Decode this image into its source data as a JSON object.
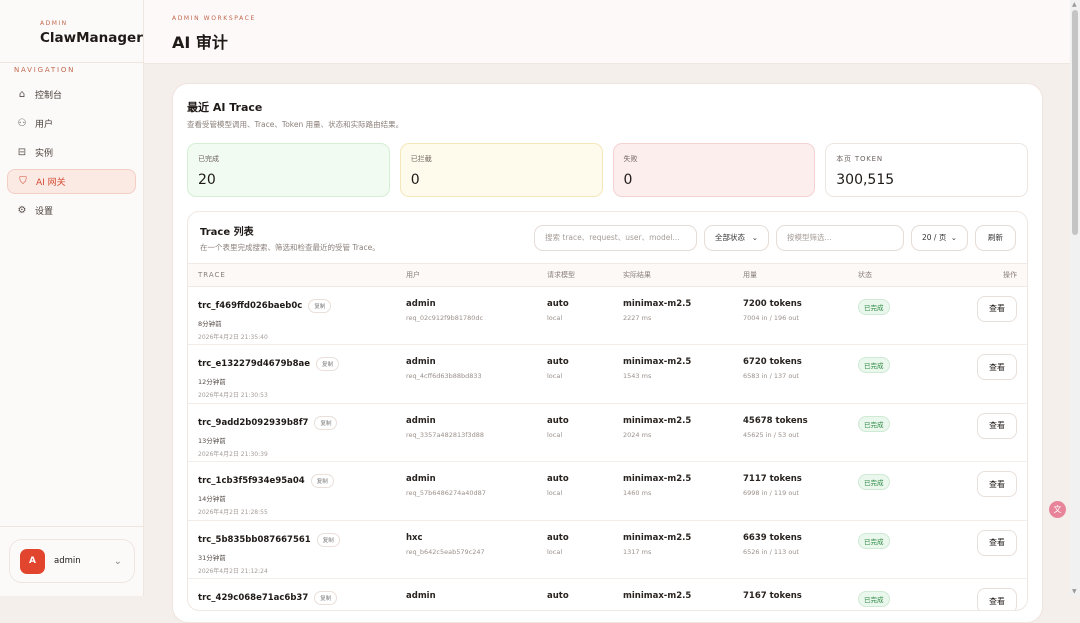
{
  "brand": {
    "small": "ADMIN",
    "name": "ClawManager"
  },
  "nav": {
    "label": "NAVIGATION",
    "items": [
      {
        "label": "控制台",
        "icon": "home-icon"
      },
      {
        "label": "用户",
        "icon": "users-icon"
      },
      {
        "label": "实例",
        "icon": "instance-icon"
      },
      {
        "label": "AI 网关",
        "icon": "shield-icon",
        "active": true
      },
      {
        "label": "设置",
        "icon": "gear-icon"
      }
    ]
  },
  "user": {
    "initial": "A",
    "name": "admin"
  },
  "header": {
    "small": "ADMIN WORKSPACE",
    "title": "AI 审计"
  },
  "card": {
    "title": "最近 AI Trace",
    "subtitle": "查看受管模型调用、Trace、Token 用量、状态和实际路由结果。"
  },
  "stats": [
    {
      "label": "已完成",
      "value": "20"
    },
    {
      "label": "已拦截",
      "value": "0"
    },
    {
      "label": "失败",
      "value": "0"
    },
    {
      "label": "本页 TOKEN",
      "value": "300,515"
    }
  ],
  "list": {
    "title": "Trace 列表",
    "subtitle": "在一个表里完成搜索、筛选和检查最近的受管 Trace。",
    "search_placeholder": "搜索 trace、request、user、model...",
    "status_filter": "全部状态",
    "model_placeholder": "按模型筛选...",
    "page_size": "20 / 页",
    "refresh": "刷新"
  },
  "columns": [
    "TRACE",
    "用户",
    "请求模型",
    "实际结果",
    "用量",
    "状态",
    "操作"
  ],
  "copy_label": "复制",
  "view_label": "查看",
  "rows": [
    {
      "trace": "trc_f469ffd026baeb0c",
      "ago": "8分钟前",
      "time": "2026年4月2日 21:35:40",
      "user": "admin",
      "req": "req_02c912f9b81780dc",
      "model": "auto",
      "model_src": "local",
      "result": "minimax-m2.5",
      "latency": "2227 ms",
      "tokens": "7200 tokens",
      "io": "7004 in / 196 out",
      "status": "已完成"
    },
    {
      "trace": "trc_e132279d4679b8ae",
      "ago": "12分钟前",
      "time": "2026年4月2日 21:30:53",
      "user": "admin",
      "req": "req_4cff6d63b88bd833",
      "model": "auto",
      "model_src": "local",
      "result": "minimax-m2.5",
      "latency": "1543 ms",
      "tokens": "6720 tokens",
      "io": "6583 in / 137 out",
      "status": "已完成"
    },
    {
      "trace": "trc_9add2b092939b8f7",
      "ago": "13分钟前",
      "time": "2026年4月2日 21:30:39",
      "user": "admin",
      "req": "req_3357a482813f3d88",
      "model": "auto",
      "model_src": "local",
      "result": "minimax-m2.5",
      "latency": "2024 ms",
      "tokens": "45678 tokens",
      "io": "45625 in / 53 out",
      "status": "已完成"
    },
    {
      "trace": "trc_1cb3f5f934e95a04",
      "ago": "14分钟前",
      "time": "2026年4月2日 21:28:55",
      "user": "admin",
      "req": "req_57b6486274a40d87",
      "model": "auto",
      "model_src": "local",
      "result": "minimax-m2.5",
      "latency": "1460 ms",
      "tokens": "7117 tokens",
      "io": "6998 in / 119 out",
      "status": "已完成"
    },
    {
      "trace": "trc_5b835bb087667561",
      "ago": "31分钟前",
      "time": "2026年4月2日 21:12:24",
      "user": "hxc",
      "req": "req_b642c5eab579c247",
      "model": "auto",
      "model_src": "local",
      "result": "minimax-m2.5",
      "latency": "1317 ms",
      "tokens": "6639 tokens",
      "io": "6526 in / 113 out",
      "status": "已完成"
    },
    {
      "trace": "trc_429c068e71ac6b37",
      "user": "admin",
      "model": "auto",
      "result": "minimax-m2.5",
      "tokens": "7167 tokens",
      "status": "已完成"
    }
  ]
}
